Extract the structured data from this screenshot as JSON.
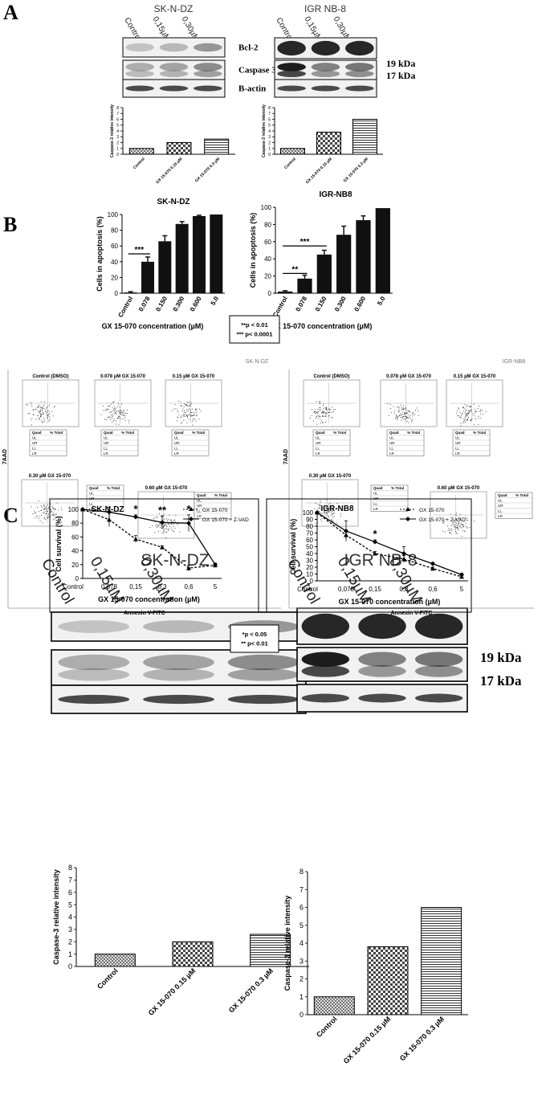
{
  "figure": {
    "panels": [
      "A",
      "B",
      "C"
    ],
    "western_blots": [
      {
        "id": "wb-a-skndz",
        "cell_line": "SK-N-DZ",
        "lanes": [
          "Control",
          "0,15µM",
          "0,30µM"
        ],
        "bands": [
          "Bcl-2",
          "Caspase 3",
          "B-actin"
        ]
      },
      {
        "id": "wb-a-igr",
        "cell_line": "IGR NB-8",
        "lanes": [
          "Control",
          "0,15µM",
          "0,30µM"
        ],
        "bands": [
          "Bcl-2",
          "Caspase 3",
          "B-actin"
        ],
        "kda": [
          "19 kDa",
          "17 kDa"
        ]
      },
      {
        "id": "wb-d-skndz",
        "cell_line": "SK-N-DZ",
        "lanes": [
          "Control",
          "0,15µM",
          "0,30µM"
        ],
        "bands": [
          "Bcl-2",
          "Caspase 3",
          "B-actin"
        ]
      },
      {
        "id": "wb-d-igr",
        "cell_line": "IGR NB-8",
        "lanes": [
          "Control",
          "0,15µM",
          "0,30µM"
        ],
        "bands": [
          "Bcl-2",
          "Caspase 3",
          "B-actin"
        ],
        "kda": [
          "19 kDa",
          "17 kDa"
        ]
      }
    ],
    "flow": {
      "skndz": {
        "title": "SK-N-DZ",
        "y_axis": "7AAD",
        "x_axis": "Annexin V-FITC",
        "plots": [
          "Control (DMSO)",
          "0.078 µM GX 15-070",
          "0.15 µM GX 15-070",
          "0.30 µM GX 15-070",
          "0.60 µM GX 15-070"
        ],
        "table_header": [
          "Quad",
          "% Total"
        ],
        "quadrants": [
          "UL",
          "UR",
          "LL",
          "LR"
        ]
      },
      "igr": {
        "title": "IGR-NB8",
        "y_axis": "7AAD",
        "x_axis": "Annexin V-FITC",
        "plots": [
          "Control (DMSO)",
          "0.078 µM GX 15-070",
          "0.15 µM GX 15-070",
          "0.30 µM GX 15-070",
          "0.60 µM GX 15-070"
        ],
        "table_header": [
          "Quad",
          "% Total"
        ],
        "quadrants": [
          "UL",
          "UR",
          "LL",
          "LR"
        ]
      }
    },
    "stats_b": [
      "**p < 0.01",
      "*** p< 0.0001"
    ],
    "stats_c": [
      "*p < 0.05",
      "** p< 0.01"
    ]
  },
  "chart_data": [
    {
      "id": "a-skndz-bar",
      "type": "bar",
      "categories": [
        "Control",
        "GX 15-070 0.15 µM",
        "GX 15-070 0.3 µM"
      ],
      "values": [
        1,
        2,
        2.6
      ],
      "ylabel": "Caspase-3 relative intensity",
      "ylim": [
        0,
        8
      ],
      "patterns": [
        "cross",
        "check",
        "hstripe"
      ]
    },
    {
      "id": "a-igr-bar",
      "type": "bar",
      "categories": [
        "Control",
        "GX 15-070 0.15 µM",
        "GX 15-070 0.3 µM"
      ],
      "values": [
        1,
        3.8,
        6
      ],
      "ylabel": "Caspase-3 relative intensity",
      "ylim": [
        0,
        8
      ],
      "patterns": [
        "cross",
        "check",
        "hstripe"
      ]
    },
    {
      "id": "b-skndz",
      "type": "bar",
      "title": "SK-N-DZ",
      "categories": [
        "Control",
        "0.078",
        "0.150",
        "0.300",
        "0.600",
        "5.0"
      ],
      "values": [
        1,
        40,
        66,
        88,
        98,
        100
      ],
      "errors": [
        1,
        6,
        7,
        3,
        1,
        0
      ],
      "ylabel": "Cells in apoptosis (%)",
      "xlabel": "GX 15-070 concentration (µM)",
      "ylim": [
        0,
        100
      ],
      "yticks": [
        0,
        20,
        40,
        60,
        80,
        100
      ],
      "annotations": [
        {
          "text": "***",
          "from": 0,
          "to": 1,
          "y": 50
        }
      ]
    },
    {
      "id": "b-igr",
      "type": "bar",
      "title": "IGR-NB8",
      "categories": [
        "Control",
        "0.078",
        "0.150",
        "0.300",
        "0.600",
        "5.0"
      ],
      "values": [
        2,
        17,
        45,
        68,
        85,
        99
      ],
      "errors": [
        1,
        4,
        5,
        10,
        5,
        0
      ],
      "ylabel": "Cells in apoptosis (%)",
      "xlabel": "GX 15-070 concentration (µM)",
      "ylim": [
        0,
        100
      ],
      "yticks": [
        0,
        20,
        40,
        60,
        80,
        100
      ],
      "annotations": [
        {
          "text": "**",
          "from": 0,
          "to": 1,
          "y": 23
        },
        {
          "text": "***",
          "from": 0,
          "to": 2,
          "y": 55
        }
      ]
    },
    {
      "id": "c-skndz",
      "type": "line",
      "title": "SK-N-DZ",
      "categories": [
        "Control",
        "0,078",
        "0,15",
        "0,3",
        "0,6",
        "5"
      ],
      "series": [
        {
          "name": "GX 15-070",
          "values": [
            100,
            85,
            57,
            45,
            15,
            19
          ],
          "errors": [
            1,
            10,
            5,
            2,
            4,
            3
          ],
          "dashed": true,
          "marker": "triangle"
        },
        {
          "name": "GX 15-070 + Z-VAD",
          "values": [
            100,
            96,
            89,
            81,
            80,
            20
          ],
          "errors": [
            1,
            7,
            3,
            9,
            12,
            2
          ],
          "dashed": false,
          "marker": "diamond"
        }
      ],
      "ylabel": "Cell survival (%)",
      "xlabel": "GX 15-070 concentration (µM)",
      "ylim": [
        0,
        100
      ],
      "yticks": [
        0,
        20,
        40,
        60,
        80,
        100
      ],
      "annotations": [
        {
          "text": "*",
          "index": 2
        },
        {
          "text": "**",
          "index": 3
        },
        {
          "text": "*",
          "index": 4
        }
      ]
    },
    {
      "id": "c-igr",
      "type": "line",
      "title": "IGR-NB8",
      "categories": [
        "Control",
        "0,078",
        "0,15",
        "0,3",
        "0,6",
        "5"
      ],
      "series": [
        {
          "name": "GX 15-070",
          "values": [
            100,
            67,
            40,
            32,
            18,
            6
          ],
          "errors": [
            1,
            6,
            3,
            5,
            2,
            2
          ],
          "dashed": true,
          "marker": "triangle"
        },
        {
          "name": "GX 15-070 + Z-VAD",
          "values": [
            100,
            73,
            57,
            40,
            25,
            9
          ],
          "errors": [
            1,
            15,
            3,
            10,
            2,
            2
          ],
          "dashed": false,
          "marker": "diamond"
        }
      ],
      "ylabel": "Cell survival (%)",
      "xlabel": "GX 15-070 concentration (µM)",
      "ylim": [
        0,
        100
      ],
      "yticks": [
        0,
        10,
        20,
        30,
        40,
        50,
        60,
        70,
        80,
        90,
        100
      ],
      "annotations": [
        {
          "text": "*",
          "index": 2
        }
      ]
    },
    {
      "id": "d-skndz-bar",
      "type": "bar",
      "categories": [
        "Control",
        "GX 15-070 0.15 µM",
        "GX 15-070 0.3 µM"
      ],
      "values": [
        1,
        2,
        2.6
      ],
      "ylabel": "Caspase-3 relative intensity",
      "ylim": [
        0,
        8
      ],
      "yticks": [
        0,
        1,
        2,
        3,
        4,
        5,
        6,
        7,
        8
      ],
      "patterns": [
        "cross",
        "check",
        "hstripe"
      ]
    },
    {
      "id": "d-igr-bar",
      "type": "bar",
      "categories": [
        "Control",
        "GX 15-070 0.15 µM",
        "GX 15-070 0.3 µM"
      ],
      "values": [
        1,
        3.8,
        6
      ],
      "ylabel": "Caspase-3 relative intensity",
      "ylim": [
        0,
        8
      ],
      "yticks": [
        0,
        1,
        2,
        3,
        4,
        5,
        6,
        7,
        8
      ],
      "patterns": [
        "cross",
        "check",
        "hstripe"
      ]
    }
  ]
}
